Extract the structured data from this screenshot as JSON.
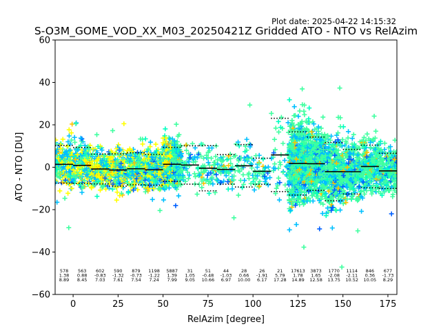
{
  "plot_date": "Plot date: 2025-04-22 14:15:32",
  "chart_data": {
    "type": "scatter",
    "title": "S-O3M_GOME_VOD_XX_M03_20250421Z Gridded ATO - NTO vs RelAzim",
    "xlabel": "RelAzim [degree]",
    "ylabel": "ATO - NTO [DU]",
    "xlim": [
      -10,
      180
    ],
    "ylim": [
      -60,
      60
    ],
    "xticks": [
      0,
      25,
      50,
      75,
      100,
      125,
      150,
      175
    ],
    "yticks": [
      -60,
      -40,
      -20,
      0,
      20,
      40,
      60
    ],
    "grid": false,
    "marker": "+",
    "palette": [
      "#ffff00",
      "#3fffa0",
      "#00ffc0",
      "#00c0ff",
      "#0060ff",
      "#0000ff",
      "#ffc000"
    ],
    "bins": [
      {
        "center": -5,
        "count": "578",
        "mean": "1.38",
        "std": "8.89",
        "mean_v": 1.38,
        "std_v": 8.89
      },
      {
        "center": 5,
        "count": "563",
        "mean": "0.88",
        "std": "8.45",
        "mean_v": 0.88,
        "std_v": 8.45
      },
      {
        "center": 15,
        "count": "602",
        "mean": "-0.83",
        "std": "7.03",
        "mean_v": -0.83,
        "std_v": 7.03
      },
      {
        "center": 25,
        "count": "590",
        "mean": "-1.32",
        "std": "7.61",
        "mean_v": -1.32,
        "std_v": 7.61
      },
      {
        "center": 35,
        "count": "879",
        "mean": "-0.73",
        "std": "7.54",
        "mean_v": -0.73,
        "std_v": 7.54
      },
      {
        "center": 45,
        "count": "1198",
        "mean": "-1.22",
        "std": "7.24",
        "mean_v": -1.22,
        "std_v": 7.24
      },
      {
        "center": 55,
        "count": "5887",
        "mean": "1.39",
        "std": "7.99",
        "mean_v": 1.39,
        "std_v": 7.99
      },
      {
        "center": 65,
        "count": "31",
        "mean": "1.05",
        "std": "9.05",
        "mean_v": 1.05,
        "std_v": 9.05
      },
      {
        "center": 75,
        "count": "51",
        "mean": "-0.48",
        "std": "10.66",
        "mean_v": -0.48,
        "std_v": 10.66
      },
      {
        "center": 85,
        "count": "44",
        "mean": "-1.03",
        "std": "6.97",
        "mean_v": -1.03,
        "std_v": 6.97
      },
      {
        "center": 95,
        "count": "28",
        "mean": "0.66",
        "std": "10.00",
        "mean_v": 0.66,
        "std_v": 10.0
      },
      {
        "center": 105,
        "count": "26",
        "mean": "-1.91",
        "std": "6.17",
        "mean_v": -1.91,
        "std_v": 6.17
      },
      {
        "center": 115,
        "count": "21",
        "mean": "5.79",
        "std": "17.28",
        "mean_v": 5.79,
        "std_v": 17.28
      },
      {
        "center": 125,
        "count": "17613",
        "mean": "1.78",
        "std": "14.89",
        "mean_v": 1.78,
        "std_v": 14.89
      },
      {
        "center": 135,
        "count": "3873",
        "mean": "1.65",
        "std": "12.58",
        "mean_v": 1.65,
        "std_v": 12.58
      },
      {
        "center": 145,
        "count": "1770",
        "mean": "-2.08",
        "std": "13.75",
        "mean_v": -2.08,
        "std_v": 13.75
      },
      {
        "center": 155,
        "count": "1114",
        "mean": "-2.11",
        "std": "10.52",
        "mean_v": -2.11,
        "std_v": 10.52
      },
      {
        "center": 165,
        "count": "846",
        "mean": "0.36",
        "std": "10.05",
        "mean_v": 0.36,
        "std_v": 10.05
      },
      {
        "center": 175,
        "count": "677",
        "mean": "-1.73",
        "std": "8.29",
        "mean_v": -1.73,
        "std_v": 8.29
      }
    ]
  }
}
